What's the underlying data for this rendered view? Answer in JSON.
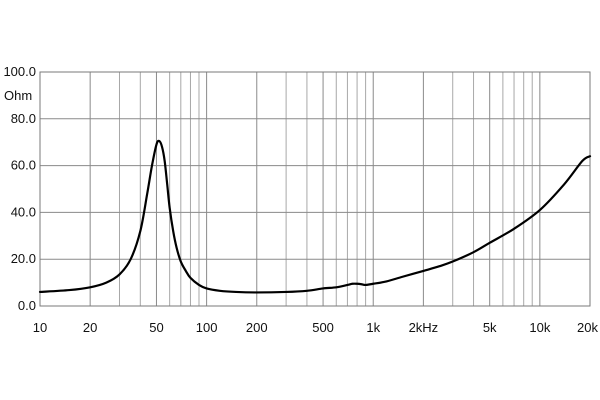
{
  "chart_data": {
    "type": "line",
    "title": "",
    "xlabel": "",
    "ylabel": "Ohm",
    "x_scale": "log",
    "xlim": [
      10,
      20000
    ],
    "ylim": [
      0,
      100
    ],
    "grid": true,
    "x_tick_values": [
      10,
      20,
      50,
      100,
      200,
      500,
      1000,
      2000,
      5000,
      10000,
      20000
    ],
    "x_tick_labels": [
      "10",
      "20",
      "50",
      "100",
      "200",
      "500",
      "1k",
      "2kHz",
      "5k",
      "10k",
      "20k"
    ],
    "y_tick_values": [
      0,
      20,
      40,
      60,
      80,
      100
    ],
    "y_tick_labels": [
      "0.0",
      "20.0",
      "40.0",
      "60.0",
      "80.0",
      "100.0"
    ],
    "series": [
      {
        "name": "",
        "x": [
          10,
          15,
          20,
          25,
          30,
          35,
          40,
          44,
          47,
          50,
          52,
          54,
          56,
          58,
          60,
          63,
          66,
          70,
          75,
          80,
          90,
          100,
          120,
          150,
          200,
          300,
          400,
          500,
          600,
          700,
          750,
          800,
          850,
          900,
          1000,
          1200,
          1500,
          2000,
          2500,
          3000,
          4000,
          5000,
          7000,
          10000,
          14000,
          18000,
          20000
        ],
        "y": [
          6,
          6.8,
          8,
          10,
          13.5,
          20,
          32,
          48,
          60,
          69,
          70.5,
          68,
          62,
          52,
          42,
          32,
          25,
          19,
          15,
          12,
          9,
          7.5,
          6.5,
          6,
          5.8,
          6,
          6.5,
          7.5,
          8,
          9,
          9.5,
          9.5,
          9.3,
          9,
          9.5,
          10.5,
          12.5,
          15,
          17,
          19,
          23,
          27,
          33,
          41,
          52,
          62,
          64
        ]
      }
    ]
  }
}
